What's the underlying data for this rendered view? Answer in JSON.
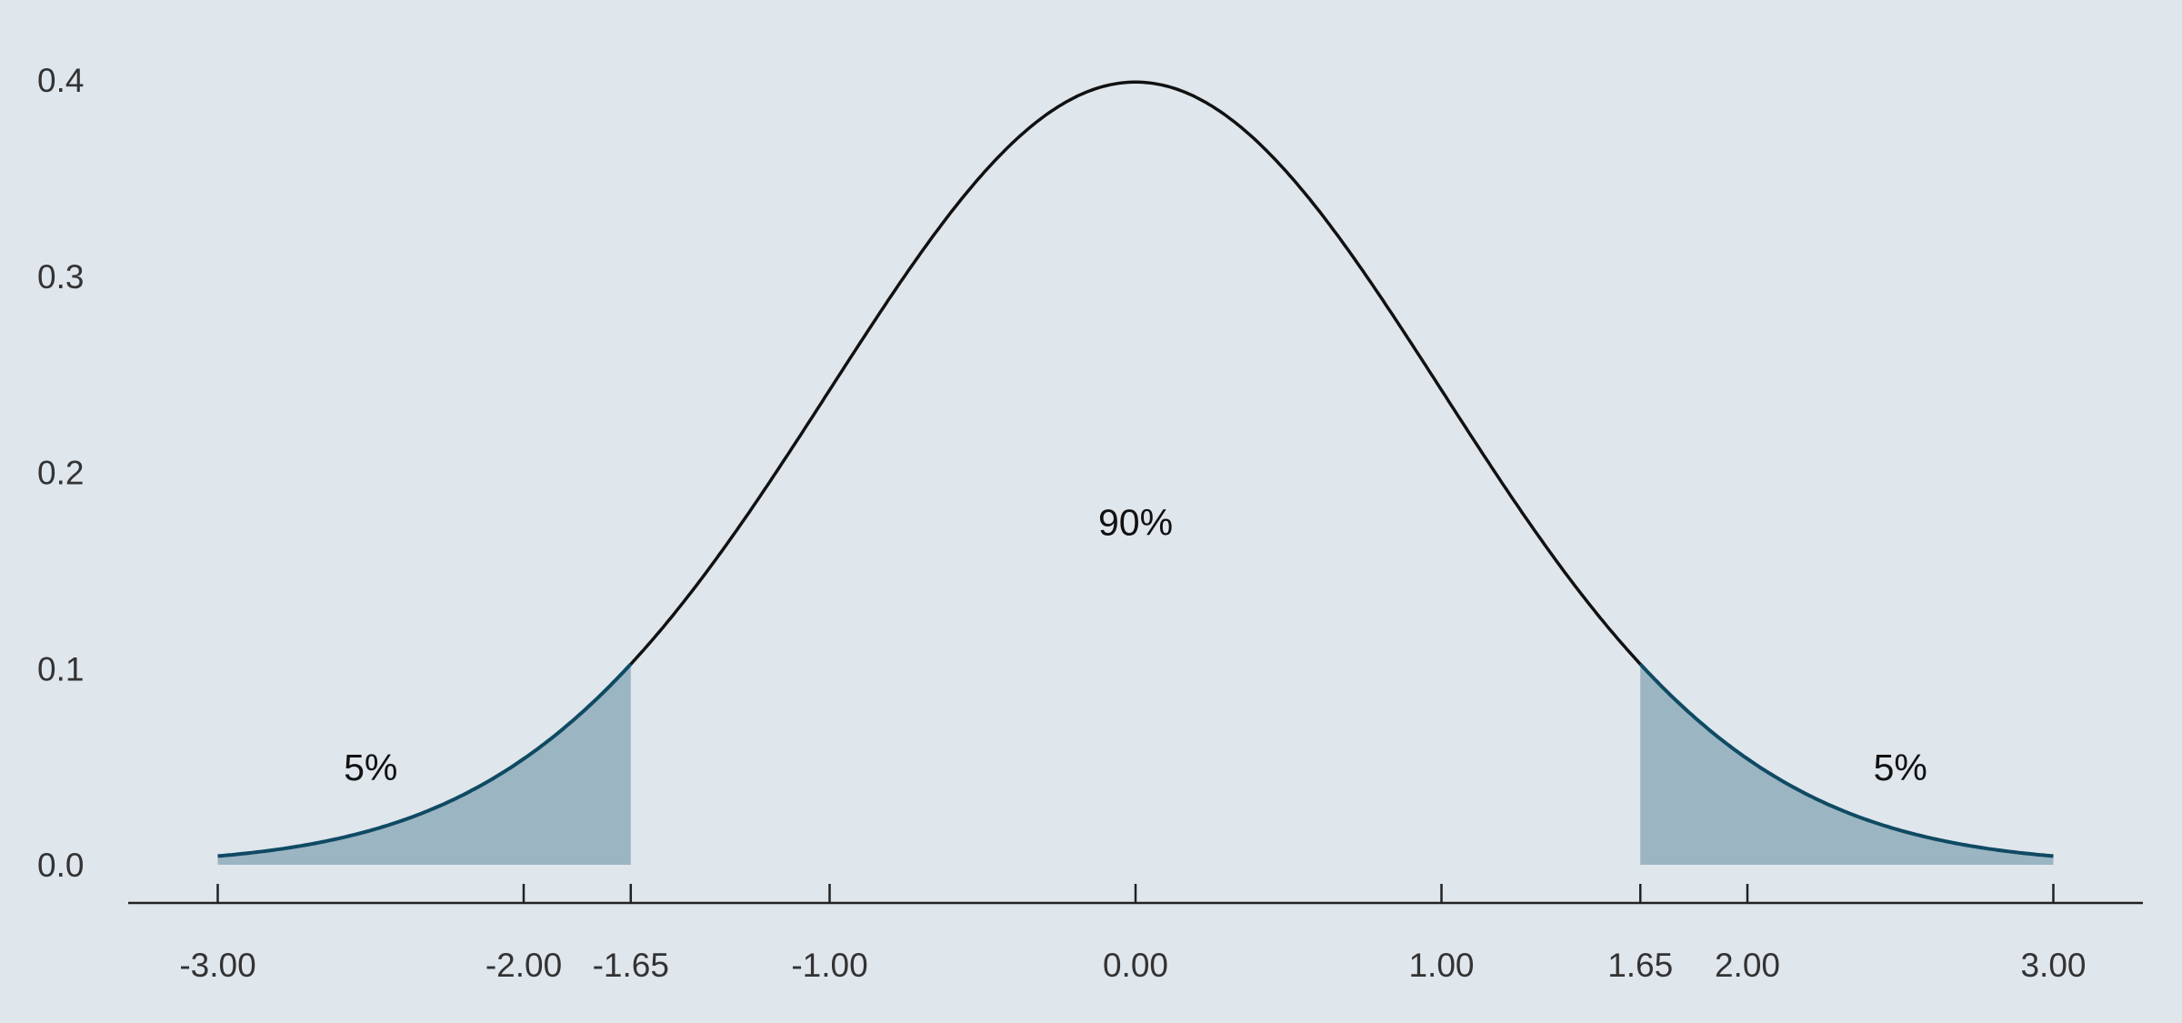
{
  "chart_data": {
    "type": "area",
    "title": "",
    "xlabel": "",
    "ylabel": "",
    "xlim": [
      -3.3,
      3.3
    ],
    "ylim": [
      -0.02,
      0.42
    ],
    "curve": {
      "distribution": "standard normal density",
      "x_range": [
        -3,
        3
      ],
      "points": [
        {
          "x": -3.0,
          "y": 0.0044
        },
        {
          "x": -2.5,
          "y": 0.0175
        },
        {
          "x": -2.0,
          "y": 0.054
        },
        {
          "x": -1.65,
          "y": 0.1023
        },
        {
          "x": -1.0,
          "y": 0.242
        },
        {
          "x": -0.5,
          "y": 0.3521
        },
        {
          "x": 0.0,
          "y": 0.3989
        },
        {
          "x": 0.5,
          "y": 0.3521
        },
        {
          "x": 1.0,
          "y": 0.242
        },
        {
          "x": 1.65,
          "y": 0.1023
        },
        {
          "x": 2.0,
          "y": 0.054
        },
        {
          "x": 2.5,
          "y": 0.0175
        },
        {
          "x": 3.0,
          "y": 0.0044
        }
      ]
    },
    "shaded_regions": [
      {
        "name": "left-tail",
        "from": -3.0,
        "to": -1.65
      },
      {
        "name": "right-tail",
        "from": 1.65,
        "to": 3.0
      }
    ],
    "x_ticks": [
      {
        "value": -3.0,
        "label": "-3.00"
      },
      {
        "value": -2.0,
        "label": "-2.00"
      },
      {
        "value": -1.65,
        "label": "-1.65"
      },
      {
        "value": -1.0,
        "label": "-1.00"
      },
      {
        "value": 0.0,
        "label": "0.00"
      },
      {
        "value": 1.0,
        "label": "1.00"
      },
      {
        "value": 1.65,
        "label": "1.65"
      },
      {
        "value": 2.0,
        "label": "2.00"
      },
      {
        "value": 3.0,
        "label": "3.00"
      }
    ],
    "y_ticks": [
      {
        "value": 0.0,
        "label": "0.0"
      },
      {
        "value": 0.1,
        "label": "0.1"
      },
      {
        "value": 0.2,
        "label": "0.2"
      },
      {
        "value": 0.3,
        "label": "0.3"
      },
      {
        "value": 0.4,
        "label": "0.4"
      }
    ],
    "annotations": [
      {
        "name": "left-tail-percent",
        "text": "5%",
        "x": -2.5,
        "y": 0.043
      },
      {
        "name": "center-percent",
        "text": "90%",
        "x": 0.0,
        "y": 0.168
      },
      {
        "name": "right-tail-percent",
        "text": "5%",
        "x": 2.5,
        "y": 0.043
      }
    ],
    "grid": false,
    "colors": {
      "background": "#dfe6ec",
      "curve": "#111111",
      "tail_fill": "#9bb5c2",
      "tail_edge": "#0f4a63",
      "axis": "#222222",
      "text": "#333333"
    }
  }
}
